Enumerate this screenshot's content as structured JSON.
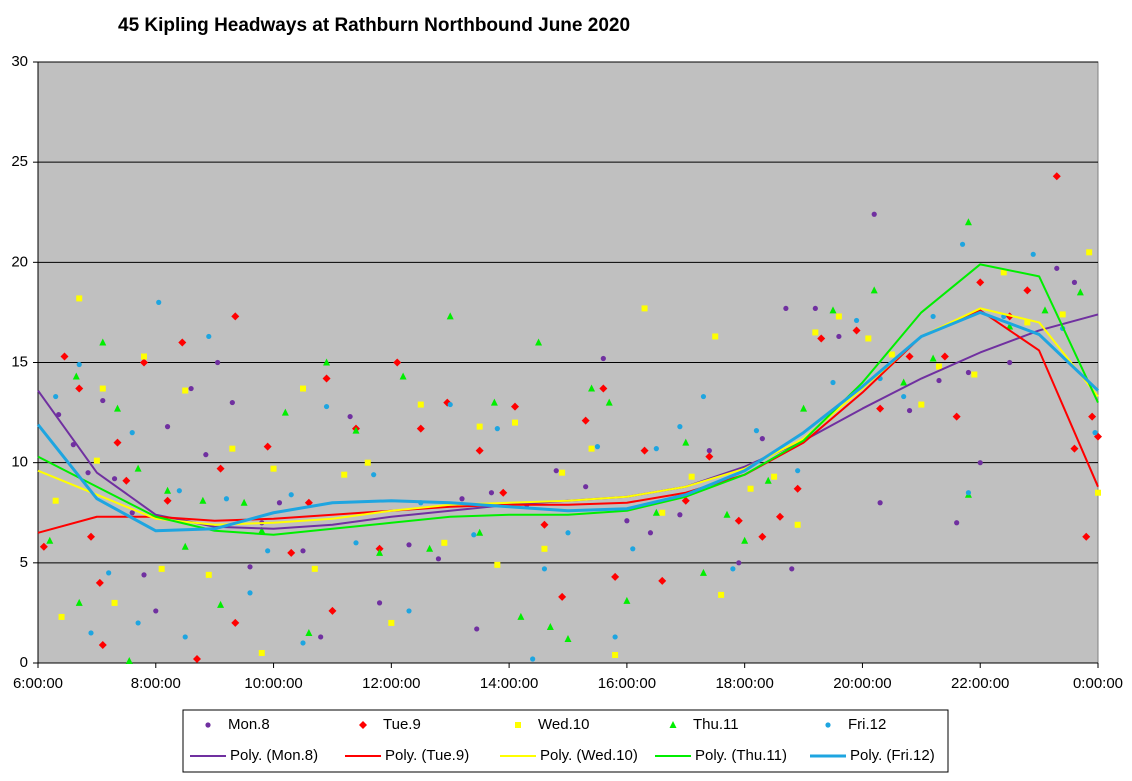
{
  "chart_data": {
    "type": "scatter",
    "title": "45 Kipling  Headways  at Rathburn Northbound  June 2020",
    "xlim": [
      6,
      24
    ],
    "xticks": [
      {
        "value": 6,
        "label": "6:00:00"
      },
      {
        "value": 8,
        "label": "8:00:00"
      },
      {
        "value": 10,
        "label": "10:00:00"
      },
      {
        "value": 12,
        "label": "12:00:00"
      },
      {
        "value": 14,
        "label": "14:00:00"
      },
      {
        "value": 16,
        "label": "16:00:00"
      },
      {
        "value": 18,
        "label": "18:00:00"
      },
      {
        "value": 20,
        "label": "20:00:00"
      },
      {
        "value": 22,
        "label": "22:00:00"
      },
      {
        "value": 24,
        "label": "0:00:00"
      }
    ],
    "ylim": [
      0,
      30
    ],
    "yticks": [
      0,
      5,
      10,
      15,
      20,
      25,
      30
    ],
    "grid": true,
    "series": [
      {
        "name": "Mon.8",
        "type": "scatter",
        "marker": "circle",
        "color": "#7030a0",
        "x": [
          6.35,
          6.6,
          6.85,
          7.1,
          7.3,
          7.6,
          7.8,
          8.0,
          8.2,
          8.6,
          8.85,
          9.05,
          9.3,
          9.6,
          9.8,
          10.1,
          10.5,
          10.8,
          11.3,
          11.8,
          12.3,
          12.8,
          13.2,
          13.45,
          13.7,
          14.3,
          14.8,
          15.3,
          15.6,
          16.0,
          16.4,
          16.9,
          17.4,
          17.9,
          18.3,
          18.7,
          18.8,
          19.2,
          19.6,
          20.2,
          20.3,
          20.8,
          21.3,
          21.6,
          21.8,
          22.0,
          22.5,
          23.3,
          23.6
        ],
        "values": [
          12.4,
          10.9,
          9.5,
          13.1,
          9.2,
          7.5,
          4.4,
          2.6,
          11.8,
          13.7,
          10.4,
          15.0,
          13.0,
          4.8,
          7.0,
          8.0,
          5.6,
          1.3,
          12.3,
          3.0,
          5.9,
          5.2,
          8.2,
          1.7,
          8.5,
          7.9,
          9.6,
          8.8,
          15.2,
          7.1,
          6.5,
          7.4,
          10.6,
          5.0,
          11.2,
          17.7,
          4.7,
          17.7,
          16.3,
          22.4,
          8.0,
          12.6,
          14.1,
          7.0,
          14.5,
          10.0,
          15.0,
          19.7,
          19.0
        ]
      },
      {
        "name": "Tue.9",
        "type": "scatter",
        "marker": "diamond",
        "color": "#ff0000",
        "x": [
          6.1,
          6.45,
          6.7,
          6.9,
          7.05,
          7.1,
          7.35,
          7.5,
          7.8,
          8.2,
          8.45,
          8.7,
          9.1,
          9.35,
          9.35,
          9.9,
          10.3,
          10.6,
          10.9,
          11.0,
          11.4,
          11.8,
          12.1,
          12.5,
          12.95,
          13.5,
          13.9,
          14.1,
          14.6,
          14.9,
          15.3,
          15.6,
          15.8,
          16.3,
          16.6,
          17.0,
          17.4,
          17.9,
          18.3,
          18.6,
          18.9,
          19.3,
          19.9,
          20.3,
          20.8,
          21.4,
          21.6,
          22.0,
          22.5,
          22.8,
          23.3,
          23.6,
          23.9,
          24.0,
          23.8
        ],
        "values": [
          5.8,
          15.3,
          13.7,
          6.3,
          4.0,
          0.9,
          11.0,
          9.1,
          15.0,
          8.1,
          16.0,
          0.2,
          9.7,
          17.3,
          2.0,
          10.8,
          5.5,
          8.0,
          14.2,
          2.6,
          11.7,
          5.7,
          15.0,
          11.7,
          13.0,
          10.6,
          8.5,
          12.8,
          6.9,
          3.3,
          12.1,
          13.7,
          4.3,
          10.6,
          4.1,
          8.1,
          10.3,
          7.1,
          6.3,
          7.3,
          8.7,
          16.2,
          16.6,
          12.7,
          15.3,
          15.3,
          12.3,
          19.0,
          17.3,
          18.6,
          24.3,
          10.7,
          12.3,
          11.3,
          6.3
        ]
      },
      {
        "name": "Wed.10",
        "type": "scatter",
        "marker": "square",
        "color": "#ffff00",
        "x": [
          6.3,
          6.4,
          6.7,
          7.0,
          7.1,
          7.3,
          7.8,
          8.1,
          8.5,
          8.9,
          9.3,
          9.8,
          10.0,
          10.5,
          10.7,
          11.2,
          11.6,
          12.0,
          12.5,
          12.9,
          13.5,
          13.8,
          14.1,
          14.6,
          14.9,
          15.4,
          15.8,
          16.3,
          16.6,
          17.1,
          17.5,
          17.6,
          18.1,
          18.5,
          18.9,
          19.2,
          19.6,
          20.1,
          20.5,
          21.0,
          21.3,
          21.9,
          22.4,
          22.8,
          23.4,
          23.85,
          24.0
        ],
        "values": [
          8.1,
          2.3,
          18.2,
          10.1,
          13.7,
          3.0,
          15.3,
          4.7,
          13.6,
          4.4,
          10.7,
          0.5,
          9.7,
          13.7,
          4.7,
          9.4,
          10.0,
          2.0,
          12.9,
          6.0,
          11.8,
          4.9,
          12.0,
          5.7,
          9.5,
          10.7,
          0.4,
          17.7,
          7.5,
          9.3,
          16.3,
          3.4,
          8.7,
          9.3,
          6.9,
          16.5,
          17.3,
          16.2,
          15.4,
          12.9,
          14.8,
          14.4,
          19.5,
          17.0,
          17.4,
          20.5,
          8.5
        ]
      },
      {
        "name": "Thu.11",
        "type": "scatter",
        "marker": "triangle",
        "color": "#00ee00",
        "x": [
          6.2,
          6.65,
          6.7,
          7.1,
          7.35,
          7.55,
          7.7,
          8.2,
          8.5,
          8.8,
          9.1,
          9.5,
          9.8,
          10.2,
          10.6,
          10.9,
          11.4,
          11.8,
          12.2,
          12.65,
          13.0,
          13.5,
          13.75,
          14.2,
          14.5,
          14.7,
          15.0,
          15.4,
          15.7,
          16.0,
          16.5,
          17.0,
          17.3,
          17.7,
          18.0,
          18.4,
          19.0,
          19.5,
          20.2,
          20.7,
          21.2,
          21.8,
          21.8,
          22.5,
          23.1,
          23.7
        ],
        "values": [
          6.1,
          14.3,
          3.0,
          16.0,
          12.7,
          0.1,
          9.7,
          8.6,
          5.8,
          8.1,
          2.9,
          8.0,
          6.6,
          12.5,
          1.5,
          15.0,
          11.6,
          5.5,
          14.3,
          5.7,
          17.3,
          6.5,
          13.0,
          2.3,
          16.0,
          1.8,
          1.2,
          13.7,
          13.0,
          3.1,
          7.5,
          11.0,
          4.5,
          7.4,
          6.1,
          9.1,
          12.7,
          17.6,
          18.6,
          14.0,
          15.2,
          22.0,
          8.4,
          16.8,
          17.6,
          18.5
        ]
      },
      {
        "name": "Fri.12",
        "type": "scatter",
        "marker": "circle",
        "color": "#1ea5e0",
        "x": [
          6.3,
          6.7,
          6.9,
          7.2,
          7.6,
          7.7,
          8.05,
          8.4,
          8.5,
          8.9,
          9.2,
          9.6,
          9.9,
          10.3,
          10.5,
          10.9,
          11.4,
          11.7,
          12.3,
          12.5,
          13.0,
          13.4,
          13.8,
          14.4,
          14.6,
          15.0,
          15.5,
          15.8,
          16.1,
          16.5,
          16.9,
          17.3,
          17.8,
          18.2,
          18.9,
          19.5,
          19.9,
          20.3,
          20.7,
          21.2,
          21.7,
          21.8,
          22.4,
          22.9,
          23.4,
          23.95
        ],
        "values": [
          13.3,
          14.9,
          1.5,
          4.5,
          11.5,
          2.0,
          18.0,
          8.6,
          1.3,
          16.3,
          8.2,
          3.5,
          5.6,
          8.4,
          1.0,
          12.8,
          6.0,
          9.4,
          2.6,
          8.0,
          12.9,
          6.4,
          11.7,
          0.2,
          4.7,
          6.5,
          10.8,
          1.3,
          5.7,
          10.7,
          11.8,
          13.3,
          4.7,
          11.6,
          9.6,
          14.0,
          17.1,
          14.2,
          13.3,
          17.3,
          20.9,
          8.5,
          17.3,
          20.4,
          16.7,
          11.5
        ]
      },
      {
        "name": "Poly. (Mon.8)",
        "type": "line",
        "line_width": 2,
        "color": "#7030a0",
        "x": [
          6,
          7,
          8,
          9,
          10,
          11,
          12,
          13,
          14,
          15,
          16,
          17,
          18,
          19,
          20,
          21,
          22,
          23,
          24
        ],
        "values": [
          13.6,
          9.5,
          7.4,
          6.8,
          6.7,
          6.9,
          7.3,
          7.6,
          7.9,
          8.1,
          8.3,
          8.8,
          9.8,
          11.1,
          12.7,
          14.2,
          15.5,
          16.6,
          17.4
        ]
      },
      {
        "name": "Poly. (Tue.9)",
        "type": "line",
        "line_width": 2,
        "color": "#ff0000",
        "x": [
          6,
          7,
          8,
          9,
          10,
          11,
          12,
          13,
          14,
          15,
          16,
          17,
          18,
          19,
          20,
          21,
          22,
          23,
          24
        ],
        "values": [
          6.5,
          7.3,
          7.3,
          7.1,
          7.2,
          7.4,
          7.6,
          7.8,
          7.9,
          7.9,
          8.0,
          8.5,
          9.4,
          11.0,
          13.5,
          16.3,
          17.6,
          15.6,
          8.8
        ]
      },
      {
        "name": "Poly. (Wed.10)",
        "type": "line",
        "line_width": 2,
        "color": "#ffff00",
        "x": [
          6,
          7,
          8,
          9,
          10,
          11,
          12,
          13,
          14,
          15,
          16,
          17,
          18,
          19,
          20,
          21,
          22,
          23,
          24
        ],
        "values": [
          9.6,
          8.4,
          7.2,
          6.9,
          7.0,
          7.2,
          7.6,
          7.9,
          8.0,
          8.1,
          8.3,
          8.8,
          9.7,
          11.2,
          13.7,
          16.3,
          17.7,
          17.0,
          13.3
        ]
      },
      {
        "name": "Poly. (Thu.11)",
        "type": "line",
        "line_width": 2,
        "color": "#00ee00",
        "x": [
          6,
          7,
          8,
          9,
          10,
          11,
          12,
          13,
          14,
          15,
          16,
          17,
          18,
          19,
          20,
          21,
          22,
          23,
          24
        ],
        "values": [
          10.3,
          8.8,
          7.3,
          6.6,
          6.4,
          6.7,
          7.0,
          7.3,
          7.4,
          7.4,
          7.6,
          8.3,
          9.4,
          11.1,
          14.0,
          17.5,
          19.9,
          19.3,
          13.0
        ]
      },
      {
        "name": "Poly. (Fri.12)",
        "type": "line",
        "line_width": 3,
        "color": "#1ea5e0",
        "x": [
          6,
          7,
          8,
          9,
          10,
          11,
          12,
          13,
          14,
          15,
          16,
          17,
          18,
          19,
          20,
          21,
          22,
          23,
          24
        ],
        "values": [
          11.9,
          8.2,
          6.6,
          6.7,
          7.5,
          8.0,
          8.1,
          8.0,
          7.8,
          7.6,
          7.7,
          8.4,
          9.6,
          11.5,
          13.8,
          16.3,
          17.5,
          16.4,
          13.6
        ]
      }
    ]
  }
}
